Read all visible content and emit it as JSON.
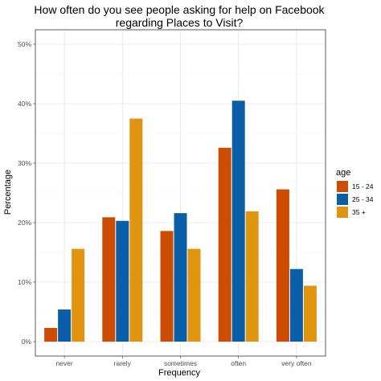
{
  "chart_data": {
    "type": "bar",
    "title": "How often do you see people asking for help on Facebook regarding Places to Visit?",
    "title_lines": [
      "How often do you see people asking for help on Facebook",
      "regarding Places to Visit?"
    ],
    "xlabel": "Frequency",
    "ylabel": "Percentage",
    "categories": [
      "never",
      "rarely",
      "sometimes",
      "often",
      "very often"
    ],
    "ylim": [
      0,
      50
    ],
    "yticks": [
      0,
      10,
      20,
      30,
      40,
      50
    ],
    "ytick_labels": [
      "0%",
      "10%",
      "20%",
      "30%",
      "40%",
      "50%"
    ],
    "grid": true,
    "legend": {
      "title": "age",
      "position": "right"
    },
    "series": [
      {
        "name": "15 - 24",
        "color": "#cc4c02",
        "values": [
          2.3,
          20.9,
          18.6,
          32.6,
          25.6
        ]
      },
      {
        "name": "25 - 34",
        "color": "#0a5ea8",
        "values": [
          5.4,
          20.3,
          21.6,
          40.5,
          12.2
        ]
      },
      {
        "name": "35 +",
        "color": "#e0940f",
        "values": [
          15.6,
          37.5,
          15.6,
          21.9,
          9.4
        ]
      }
    ]
  }
}
